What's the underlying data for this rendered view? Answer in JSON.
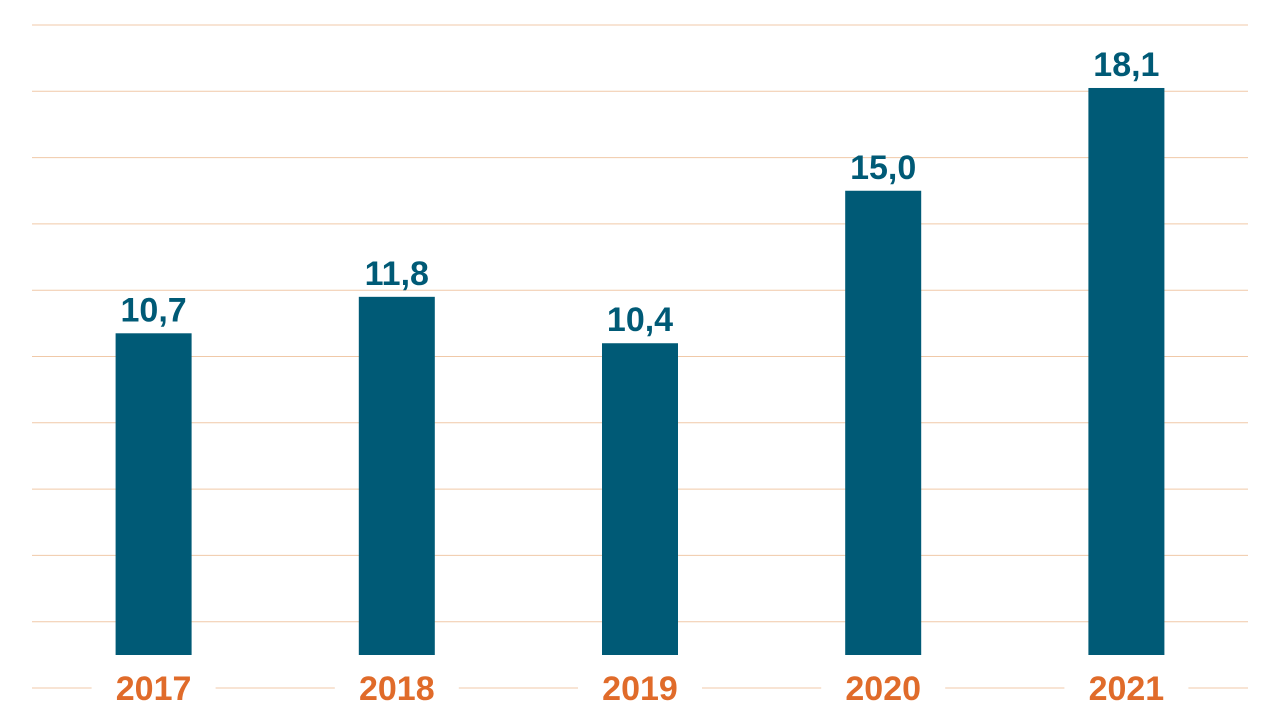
{
  "chart_data": {
    "type": "bar",
    "categories": [
      "2017",
      "2018",
      "2019",
      "2020",
      "2021"
    ],
    "values": [
      10.7,
      11.8,
      10.4,
      15.0,
      18.1
    ],
    "value_labels": [
      "10,7",
      "11,8",
      "10,4",
      "15,0",
      "18,1"
    ],
    "title": "",
    "xlabel": "",
    "ylabel": "",
    "ylim": [
      0,
      20
    ],
    "grid": true,
    "legend": "none"
  },
  "colors": {
    "bar": "#005a76",
    "value_label": "#005a76",
    "category_label": "#e06b2a",
    "grid": "#f0c9a8"
  }
}
